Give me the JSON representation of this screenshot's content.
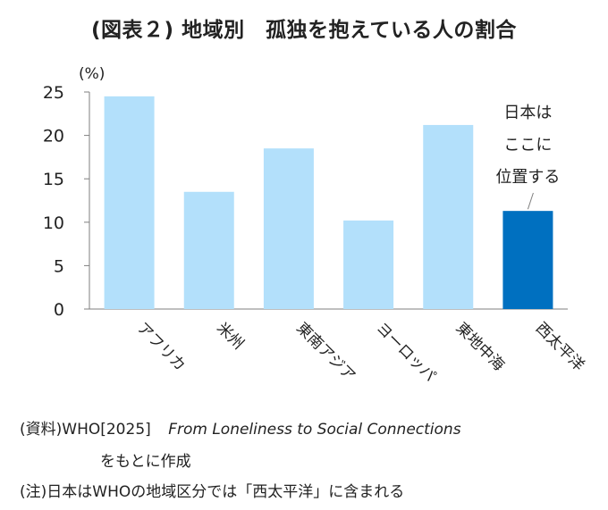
{
  "title": "(図表２) 地域別　孤独を抱えている人の割合",
  "chart_data": {
    "type": "bar",
    "unit_label": "(%)",
    "categories": [
      "アフリカ",
      "米州",
      "東南アジア",
      "ヨーロッパ",
      "東地中海",
      "西太平洋"
    ],
    "values": [
      24.5,
      13.5,
      18.5,
      10.2,
      21.2,
      11.3
    ],
    "ylim": [
      0,
      25
    ],
    "yticks": [
      0,
      5,
      10,
      15,
      20,
      25
    ],
    "highlight_index": 5,
    "annotation": [
      "日本は",
      "ここに",
      "位置する"
    ],
    "grid": false
  },
  "colors": {
    "bar": "#b3e0fb",
    "highlight": "#0070c0",
    "axis": "#7f7f7f",
    "text": "#222222"
  },
  "source": {
    "label": "(資料)WHO[2025]",
    "work": "From Loneliness to Social Connections",
    "suffix": "をもとに作成"
  },
  "note": "(注)日本はWHOの地域区分では「西太平洋」に含まれる"
}
